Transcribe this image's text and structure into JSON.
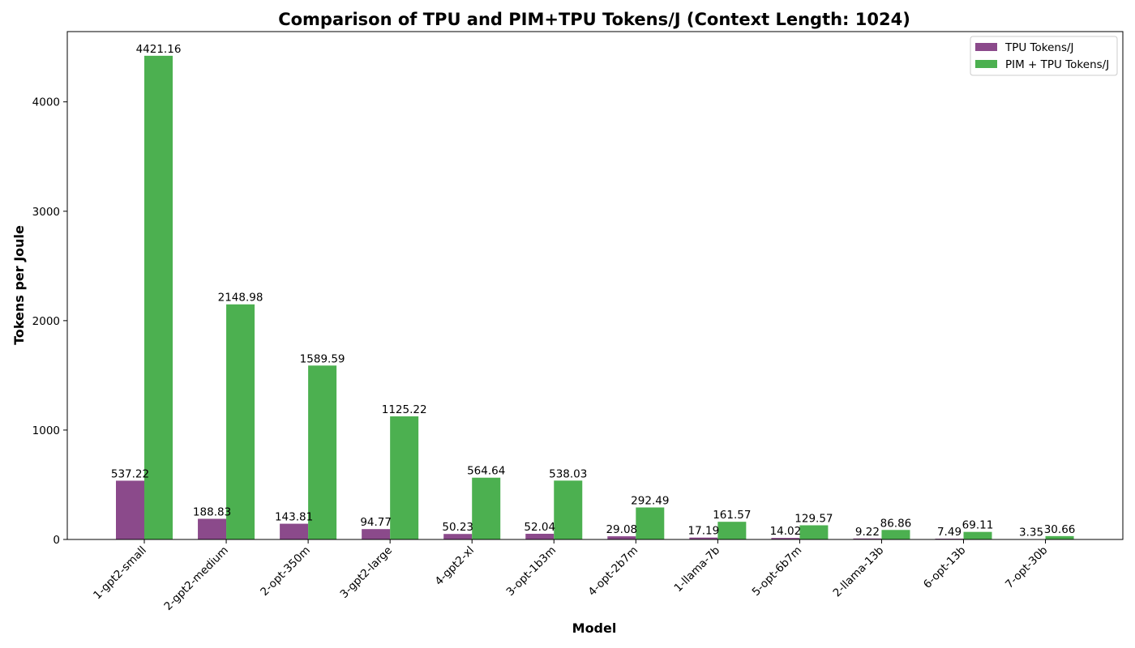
{
  "chart_data": {
    "type": "bar",
    "title": "Comparison of TPU and PIM+TPU Tokens/J (Context Length: 1024)",
    "xlabel": "Model",
    "ylabel": "Tokens per Joule",
    "ylim": [
      0,
      4642.2
    ],
    "yticks": [
      0,
      1000,
      2000,
      3000,
      4000
    ],
    "grid": false,
    "legend_position": "top-right",
    "categories": [
      "1-gpt2-small",
      "2-gpt2-medium",
      "2-opt-350m",
      "3-gpt2-large",
      "4-gpt2-xl",
      "3-opt-1b3m",
      "4-opt-2b7m",
      "1-llama-7b",
      "5-opt-6b7m",
      "2-llama-13b",
      "6-opt-13b",
      "7-opt-30b"
    ],
    "series": [
      {
        "name": "TPU Tokens/J",
        "color": "#8B4A8B",
        "values": [
          537.22,
          188.83,
          143.81,
          94.77,
          50.23,
          52.04,
          29.08,
          17.19,
          14.02,
          9.22,
          7.49,
          3.35
        ],
        "labels": [
          "537.22",
          "188.83",
          "143.81",
          "94.77",
          "50.23",
          "52.04",
          "29.08",
          "17.19",
          "14.02",
          "9.22",
          "7.49",
          "3.35"
        ]
      },
      {
        "name": "PIM + TPU Tokens/J",
        "color": "#4CB050",
        "values": [
          4421.16,
          2148.98,
          1589.59,
          1125.22,
          564.64,
          538.03,
          292.49,
          161.57,
          129.57,
          86.86,
          69.11,
          30.66
        ],
        "labels": [
          "4421.16",
          "2148.98",
          "1589.59",
          "1125.22",
          "564.64",
          "538.03",
          "292.49",
          "161.57",
          "129.57",
          "86.86",
          "69.11",
          "30.66"
        ]
      }
    ]
  }
}
